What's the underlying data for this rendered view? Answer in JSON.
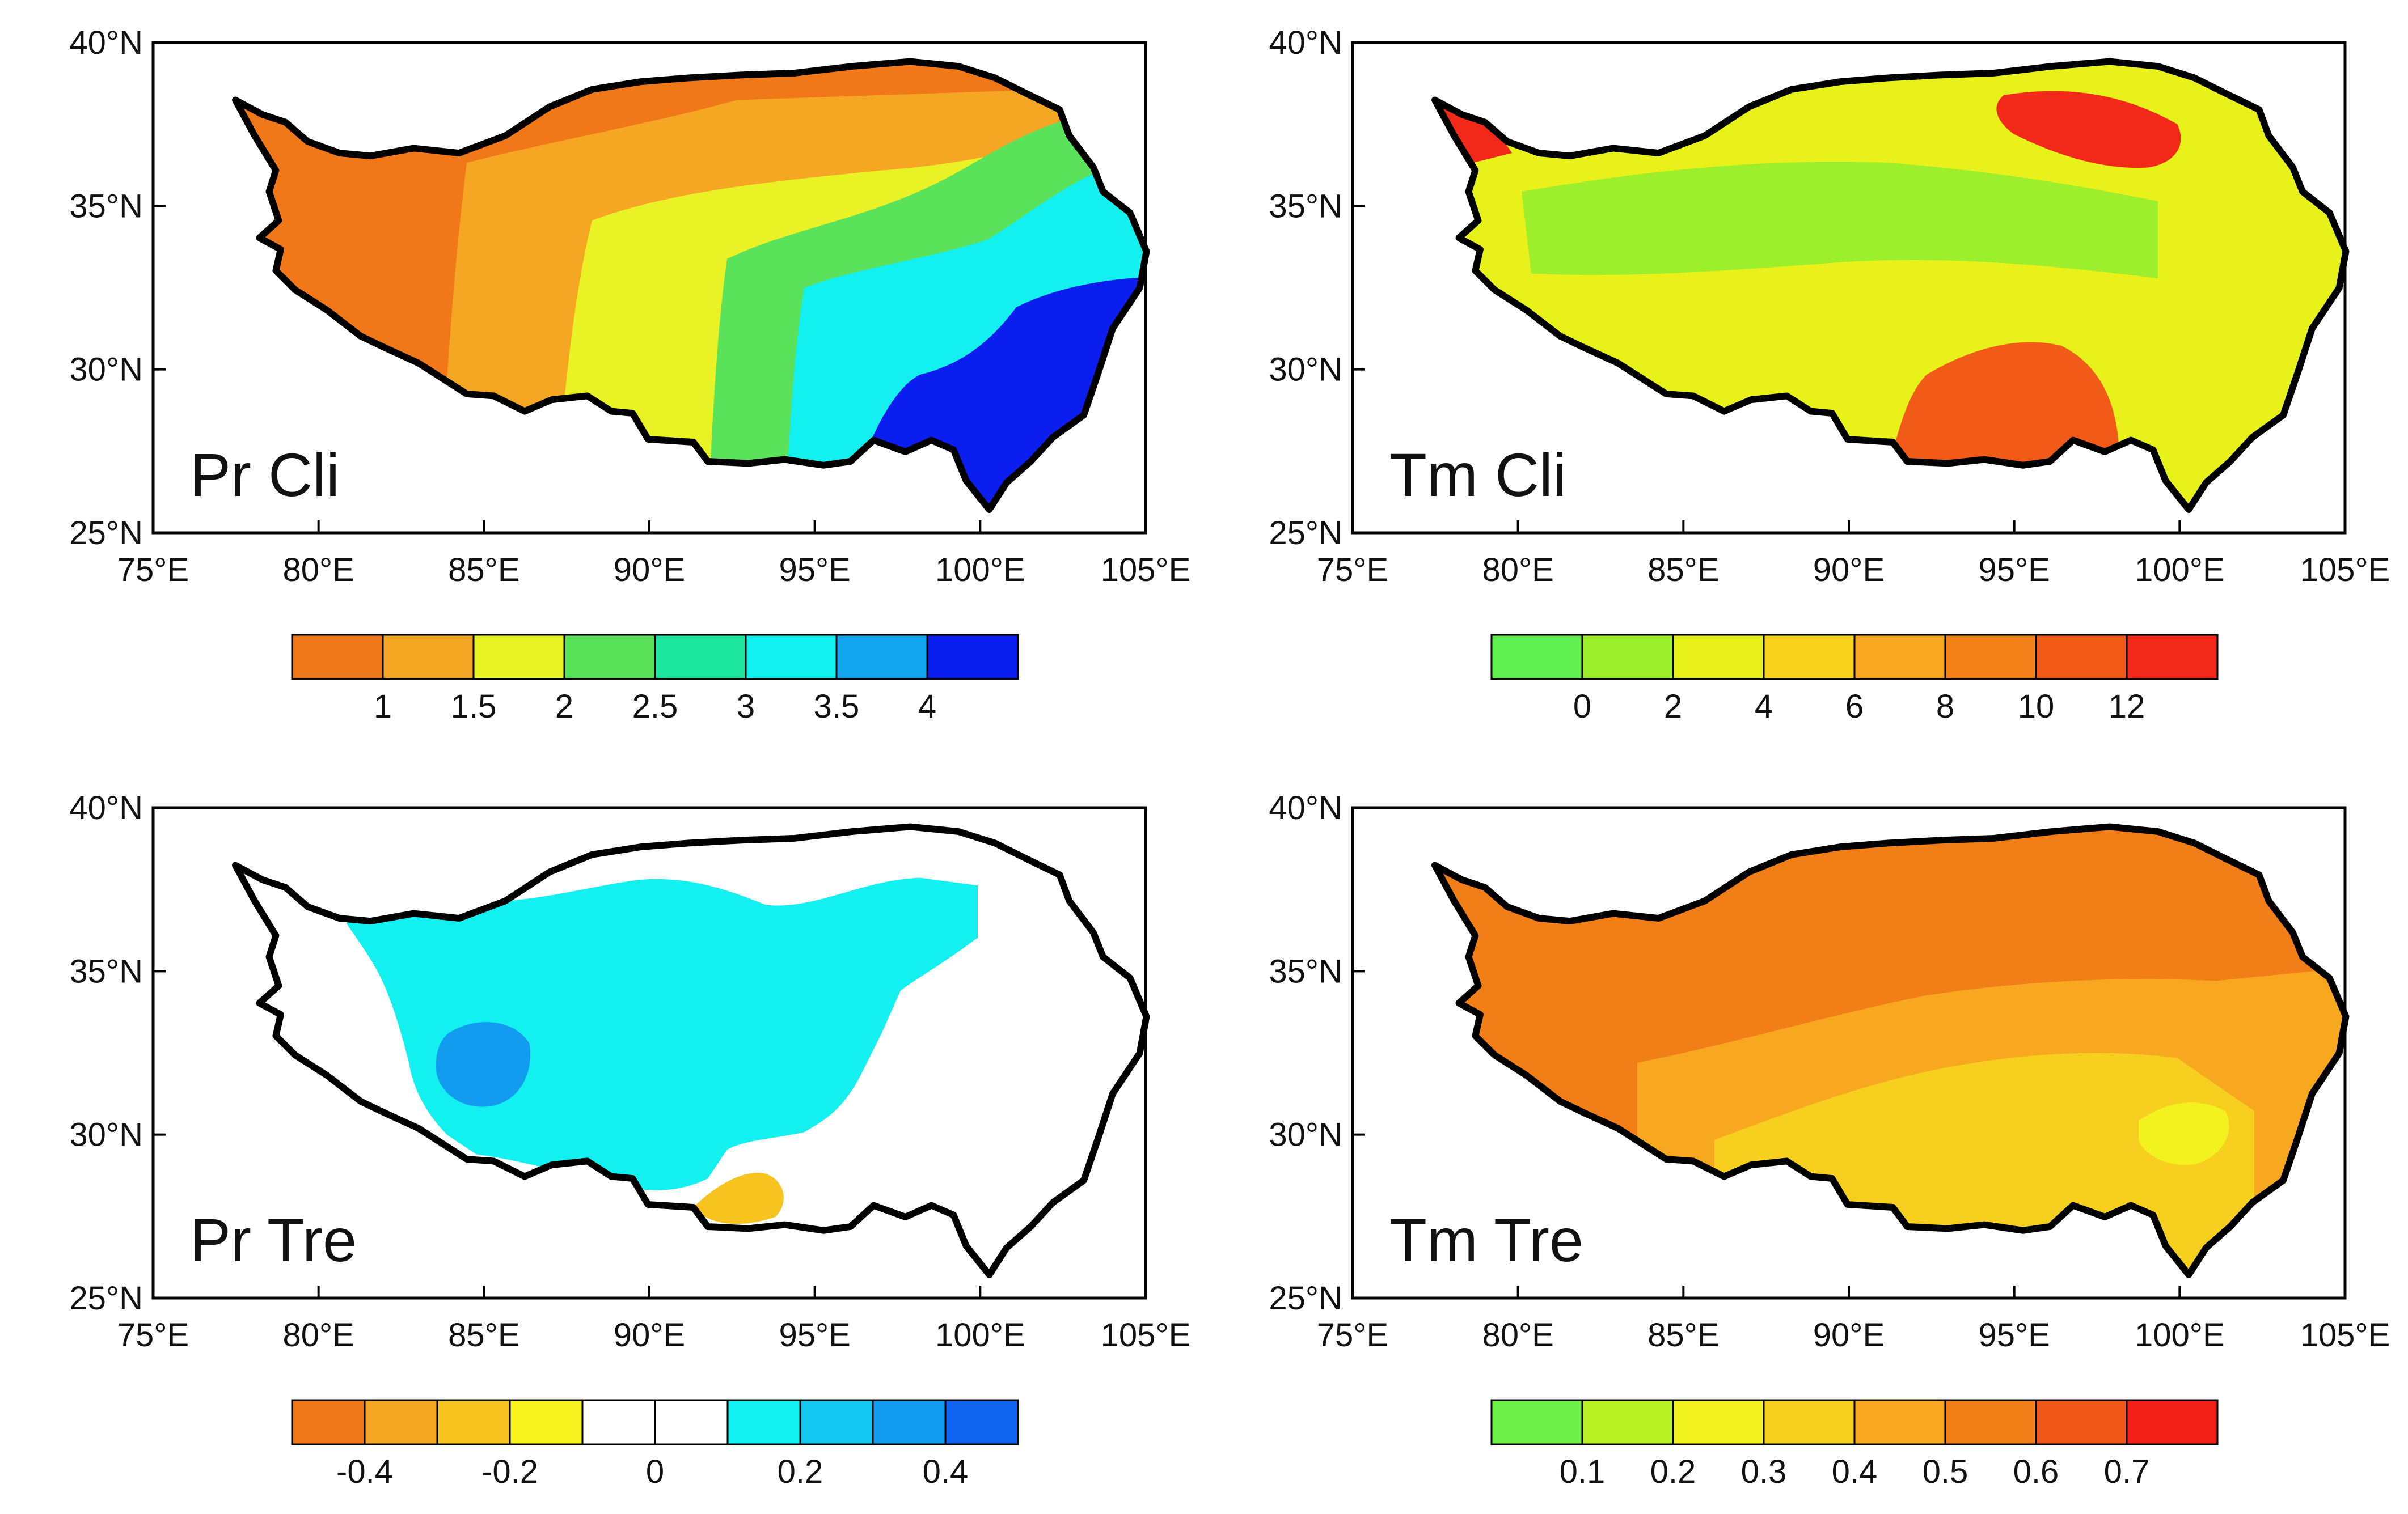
{
  "figure": {
    "lon_ticks": [
      "75°E",
      "80°E",
      "85°E",
      "90°E",
      "95°E",
      "100°E",
      "105°E"
    ],
    "lat_ticks": [
      "40°N",
      "35°N",
      "30°N",
      "25°N"
    ],
    "domain": {
      "lon": [
        75,
        105
      ],
      "lat": [
        25,
        40
      ]
    },
    "outline_color": "#000000"
  },
  "panels": [
    {
      "id": "pr-cli",
      "title": "Pr Cli",
      "variable": "precipitation climatology",
      "colorbar": {
        "colors": [
          "#f07818",
          "#f5a623",
          "#e8f224",
          "#5ae35a",
          "#1de6a0",
          "#12f0f0",
          "#12a6f0",
          "#0a1ef0"
        ],
        "labels": [
          "1",
          "1.5",
          "2",
          "2.5",
          "3",
          "3.5",
          "4"
        ]
      },
      "regions": [
        {
          "desc": "west",
          "color_index": 0
        },
        {
          "desc": "central-west",
          "color_index": 1
        },
        {
          "desc": "central",
          "color_index": 2
        },
        {
          "desc": "central-east",
          "color_index": 3
        },
        {
          "desc": "east",
          "color_index": 5
        },
        {
          "desc": "south-east",
          "color_index": 7
        }
      ]
    },
    {
      "id": "tm-cli",
      "title": "Tm Cli",
      "variable": "temperature climatology",
      "colorbar": {
        "colors": [
          "#5fef4f",
          "#9cef2a",
          "#e8f21a",
          "#f7d31e",
          "#f7a81e",
          "#f28018",
          "#f25a18",
          "#f22818"
        ],
        "labels": [
          "0",
          "2",
          "4",
          "6",
          "8",
          "10",
          "12"
        ]
      },
      "regions": [
        {
          "desc": "base",
          "color_index": 2
        },
        {
          "desc": "central-band",
          "color_index": 1
        },
        {
          "desc": "north-hot",
          "color_index": 7
        },
        {
          "desc": "south-east-hot",
          "color_index": 6
        },
        {
          "desc": "west-edge",
          "color_index": 7
        }
      ]
    },
    {
      "id": "pr-tre",
      "title": "Pr Tre",
      "variable": "precipitation trend",
      "colorbar": {
        "colors": [
          "#f07818",
          "#f5a623",
          "#f7c31e",
          "#f7f21e",
          "#ffffff",
          "#ffffff",
          "#12f0f0",
          "#12c8f0",
          "#129cf0",
          "#1064f0"
        ],
        "labels": [
          "-0.4",
          "-0.2",
          "0",
          "0.2",
          "0.4"
        ]
      },
      "regions": [
        {
          "desc": "base",
          "color_index": 4
        },
        {
          "desc": "central-positive",
          "color_index": 6
        },
        {
          "desc": "central-stronger",
          "color_index": 8
        },
        {
          "desc": "south-east-negative",
          "color_index": 2
        }
      ]
    },
    {
      "id": "tm-tre",
      "title": "Tm Tre",
      "variable": "temperature trend",
      "colorbar": {
        "colors": [
          "#6ef24a",
          "#b8f224",
          "#f2f21e",
          "#f7cf1e",
          "#f7a81e",
          "#f27e18",
          "#f25818",
          "#f22018"
        ],
        "labels": [
          "0.1",
          "0.2",
          "0.3",
          "0.4",
          "0.5",
          "0.6",
          "0.7"
        ]
      },
      "regions": [
        {
          "desc": "base",
          "color_index": 5
        },
        {
          "desc": "central",
          "color_index": 4
        },
        {
          "desc": "south",
          "color_index": 3
        },
        {
          "desc": "south-east",
          "color_index": 2
        }
      ]
    }
  ]
}
